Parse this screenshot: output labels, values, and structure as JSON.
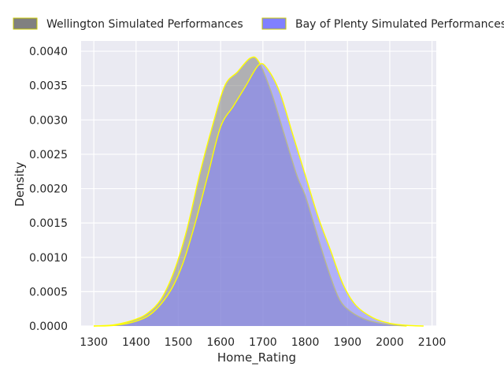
{
  "chart_data": {
    "type": "area",
    "xlabel": "Home_Rating",
    "ylabel": "Density",
    "xlim": [
      1270,
      2110
    ],
    "ylim": [
      0,
      0.00415
    ],
    "x_ticks": [
      1300,
      1400,
      1500,
      1600,
      1700,
      1800,
      1900,
      2000,
      2100
    ],
    "y_ticks": [
      0.0,
      0.0005,
      0.001,
      0.0015,
      0.002,
      0.0025,
      0.003,
      0.0035,
      0.004
    ],
    "x_tick_labels": [
      "1300",
      "1400",
      "1500",
      "1600",
      "1700",
      "1800",
      "1900",
      "2000",
      "2100"
    ],
    "y_tick_labels": [
      "0.0000",
      "0.0005",
      "0.0010",
      "0.0015",
      "0.0020",
      "0.0025",
      "0.0030",
      "0.0035",
      "0.0040"
    ],
    "grid": true,
    "legend_position": "top",
    "series": [
      {
        "name": "Wellington Simulated Performances",
        "fill": "#808080",
        "stroke": "#ffff00",
        "x": [
          1300,
          1350,
          1400,
          1430,
          1460,
          1490,
          1520,
          1550,
          1580,
          1610,
          1640,
          1670,
          1690,
          1720,
          1750,
          1780,
          1800,
          1820,
          1850,
          1880,
          1910,
          1950,
          2000,
          2040
        ],
        "y": [
          0.0,
          2e-05,
          0.0001,
          0.0002,
          0.0004,
          0.0008,
          0.0014,
          0.0022,
          0.0029,
          0.0035,
          0.0037,
          0.0039,
          0.00385,
          0.0034,
          0.0028,
          0.0022,
          0.0019,
          0.0015,
          0.0009,
          0.0004,
          0.0002,
          8e-05,
          2e-05,
          0.0
        ]
      },
      {
        "name": "Bay of Plenty Simulated Performances",
        "fill": "#8080ff",
        "stroke": "#ffff00",
        "x": [
          1300,
          1350,
          1400,
          1440,
          1480,
          1510,
          1540,
          1570,
          1600,
          1630,
          1660,
          1690,
          1710,
          1740,
          1770,
          1800,
          1830,
          1860,
          1890,
          1920,
          1960,
          2000,
          2040,
          2080
        ],
        "y": [
          0.0,
          1e-05,
          7e-05,
          0.0002,
          0.0005,
          0.0009,
          0.0015,
          0.0022,
          0.0029,
          0.0032,
          0.0035,
          0.0038,
          0.00375,
          0.0034,
          0.0028,
          0.0022,
          0.0016,
          0.0011,
          0.0006,
          0.0003,
          0.00012,
          4e-05,
          1e-05,
          0.0
        ]
      }
    ]
  }
}
